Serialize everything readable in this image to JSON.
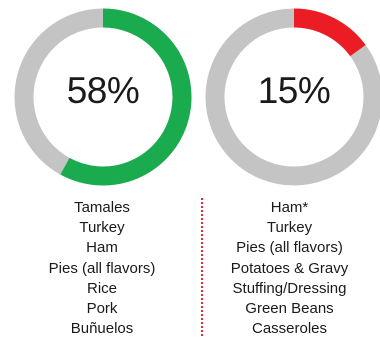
{
  "chart_data": [
    {
      "type": "pie",
      "style": "donut",
      "percent_label": "58%",
      "value": 58,
      "colors": {
        "filled": "#1aab4f",
        "remainder": "#c4c4c4"
      },
      "items": [
        "Tamales",
        "Turkey",
        "Ham",
        "Pies (all flavors)",
        "Rice",
        "Pork",
        "Buñuelos"
      ]
    },
    {
      "type": "pie",
      "style": "donut",
      "percent_label": "15%",
      "value": 15,
      "colors": {
        "filled": "#ec1c24",
        "remainder": "#c4c4c4"
      },
      "items": [
        "Ham*",
        "Turkey",
        "Pies (all flavors)",
        "Potatoes & Gravy",
        "Stuffing/Dressing",
        "Green Beans",
        "Casseroles"
      ]
    }
  ],
  "divider_color": "#e0282d"
}
